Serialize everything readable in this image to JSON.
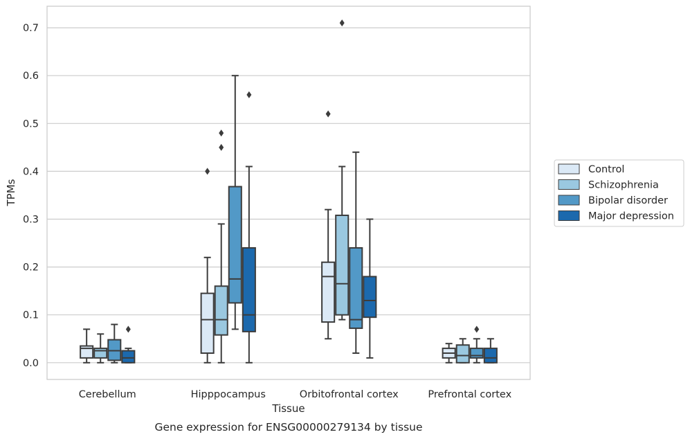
{
  "chart_data": {
    "type": "box",
    "title": "",
    "caption": "Gene expression for ENSG00000279134 by tissue",
    "xlabel": "Tissue",
    "ylabel": "TPMs",
    "ylim": [
      -0.035,
      0.745
    ],
    "yticks": [
      0.0,
      0.1,
      0.2,
      0.3,
      0.4,
      0.5,
      0.6,
      0.7
    ],
    "ytick_labels": [
      "0.0",
      "0.1",
      "0.2",
      "0.3",
      "0.4",
      "0.5",
      "0.6",
      "0.7"
    ],
    "grid": true,
    "legend_position": "right",
    "categories": [
      "Cerebellum",
      "Hipppocampus",
      "Orbitofrontal cortex",
      "Prefrontal cortex"
    ],
    "series": [
      {
        "name": "Control",
        "color": "#dbe9f6",
        "boxes": [
          {
            "whislo": 0.0,
            "q1": 0.01,
            "med": 0.03,
            "q3": 0.035,
            "whishi": 0.07,
            "fliers": []
          },
          {
            "whislo": 0.0,
            "q1": 0.02,
            "med": 0.09,
            "q3": 0.145,
            "whishi": 0.22,
            "fliers": [
              0.4
            ]
          },
          {
            "whislo": 0.05,
            "q1": 0.085,
            "med": 0.18,
            "q3": 0.21,
            "whishi": 0.32,
            "fliers": [
              0.52
            ]
          },
          {
            "whislo": 0.0,
            "q1": 0.01,
            "med": 0.02,
            "q3": 0.03,
            "whishi": 0.04,
            "fliers": []
          }
        ]
      },
      {
        "name": "Schizophrenia",
        "color": "#9ac8e0",
        "boxes": [
          {
            "whislo": 0.0,
            "q1": 0.01,
            "med": 0.025,
            "q3": 0.03,
            "whishi": 0.06,
            "fliers": []
          },
          {
            "whislo": 0.0,
            "q1": 0.058,
            "med": 0.09,
            "q3": 0.16,
            "whishi": 0.29,
            "fliers": [
              0.45,
              0.48
            ]
          },
          {
            "whislo": 0.09,
            "q1": 0.1,
            "med": 0.165,
            "q3": 0.308,
            "whishi": 0.41,
            "fliers": [
              0.71
            ]
          },
          {
            "whislo": 0.0,
            "q1": 0.0,
            "med": 0.015,
            "q3": 0.037,
            "whishi": 0.05,
            "fliers": []
          }
        ]
      },
      {
        "name": "Bipolar disorder",
        "color": "#5299c7",
        "boxes": [
          {
            "whislo": 0.0,
            "q1": 0.005,
            "med": 0.025,
            "q3": 0.048,
            "whishi": 0.08,
            "fliers": []
          },
          {
            "whislo": 0.07,
            "q1": 0.125,
            "med": 0.175,
            "q3": 0.368,
            "whishi": 0.6,
            "fliers": []
          },
          {
            "whislo": 0.02,
            "q1": 0.072,
            "med": 0.09,
            "q3": 0.24,
            "whishi": 0.44,
            "fliers": []
          },
          {
            "whislo": 0.0,
            "q1": 0.01,
            "med": 0.015,
            "q3": 0.03,
            "whishi": 0.05,
            "fliers": [
              0.07
            ]
          }
        ]
      },
      {
        "name": "Major depression",
        "color": "#1c69ad",
        "boxes": [
          {
            "whislo": 0.0,
            "q1": 0.0,
            "med": 0.01,
            "q3": 0.025,
            "whishi": 0.03,
            "fliers": [
              0.07
            ]
          },
          {
            "whislo": 0.0,
            "q1": 0.065,
            "med": 0.1,
            "q3": 0.24,
            "whishi": 0.41,
            "fliers": [
              0.56
            ]
          },
          {
            "whislo": 0.01,
            "q1": 0.095,
            "med": 0.13,
            "q3": 0.18,
            "whishi": 0.3,
            "fliers": []
          },
          {
            "whislo": 0.0,
            "q1": 0.0,
            "med": 0.01,
            "q3": 0.03,
            "whishi": 0.05,
            "fliers": []
          }
        ]
      }
    ],
    "colors": {
      "edge": "#3c3c3c",
      "grid": "#cccccc",
      "frame": "#cccccc"
    }
  }
}
